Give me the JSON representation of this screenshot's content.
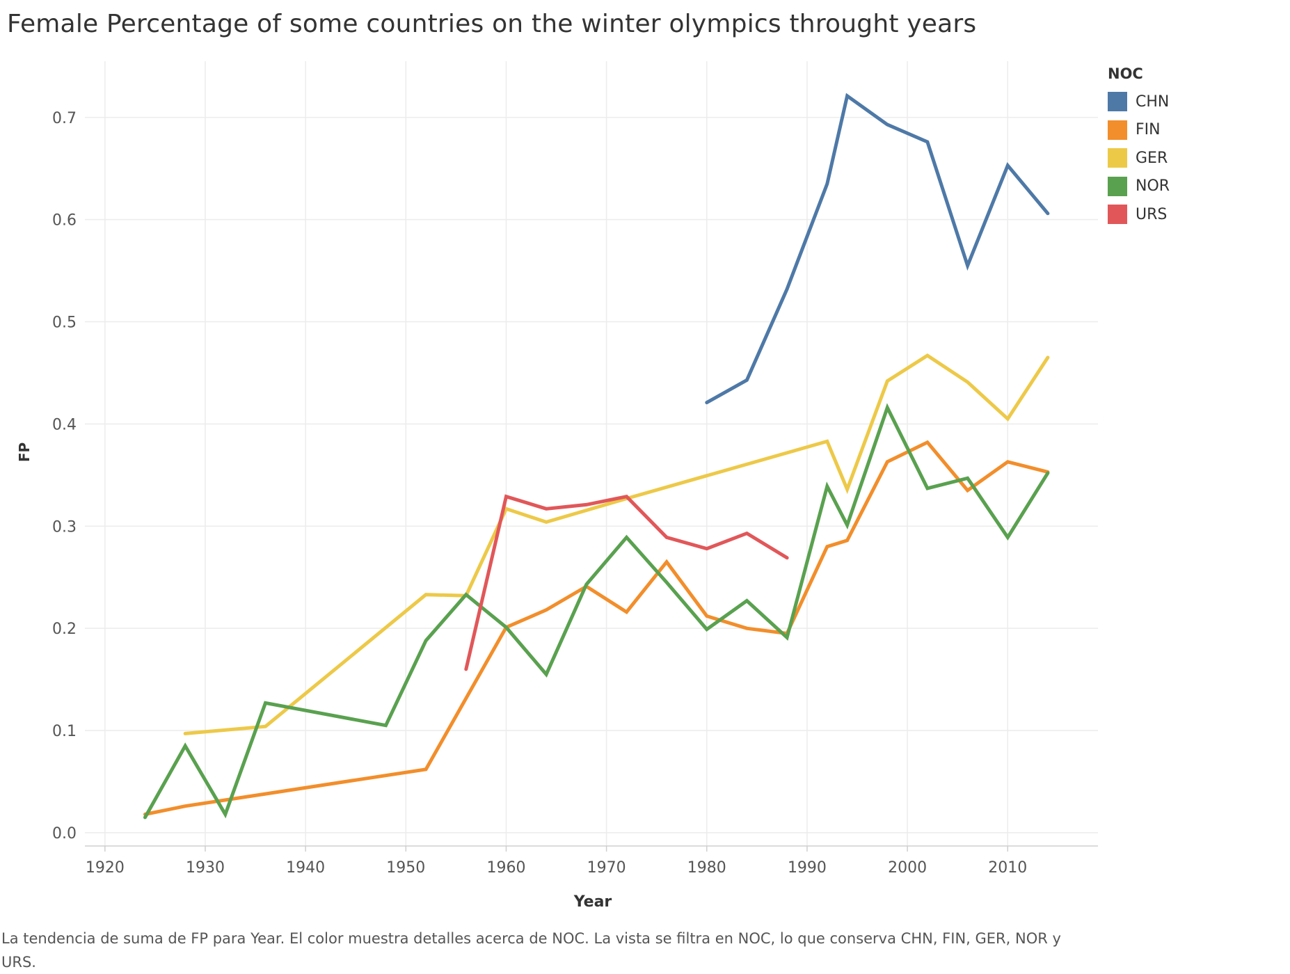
{
  "chart_data": {
    "type": "line",
    "title": "Female Percentage of some countries on the winter olympics throught years",
    "xlabel": "Year",
    "ylabel": "FP",
    "xlim": [
      1918,
      2019
    ],
    "ylim": [
      -0.013,
      0.755
    ],
    "x_ticks": [
      1920,
      1930,
      1940,
      1950,
      1960,
      1970,
      1980,
      1990,
      2000,
      2010
    ],
    "y_ticks": [
      0.0,
      0.1,
      0.2,
      0.3,
      0.4,
      0.5,
      0.6,
      0.7
    ],
    "y_tick_labels": [
      "0.0",
      "0.1",
      "0.2",
      "0.3",
      "0.4",
      "0.5",
      "0.6",
      "0.7"
    ],
    "grid": true,
    "legend": {
      "title": "NOC",
      "placement": "top-right"
    },
    "series": [
      {
        "name": "CHN",
        "color": "#4e79a7",
        "x": [
          1980,
          1984,
          1988,
          1992,
          1994,
          1998,
          2002,
          2006,
          2010,
          2014
        ],
        "y": [
          0.421,
          0.443,
          0.532,
          0.635,
          0.721,
          0.693,
          0.676,
          0.555,
          0.653,
          0.606
        ]
      },
      {
        "name": "FIN",
        "color": "#f28e2b",
        "x": [
          1924,
          1928,
          1936,
          1952,
          1960,
          1964,
          1968,
          1972,
          1976,
          1980,
          1984,
          1988,
          1992,
          1994,
          1998,
          2002,
          2006,
          2010,
          2014
        ],
        "y": [
          0.018,
          0.026,
          0.038,
          0.062,
          0.201,
          0.218,
          0.241,
          0.216,
          0.265,
          0.212,
          0.2,
          0.195,
          0.28,
          0.286,
          0.363,
          0.382,
          0.335,
          0.363,
          0.353
        ]
      },
      {
        "name": "GER",
        "color": "#edc948",
        "x": [
          1928,
          1936,
          1952,
          1956,
          1960,
          1964,
          1972,
          1992,
          1994,
          1998,
          2002,
          2006,
          2010,
          2014
        ],
        "y": [
          0.097,
          0.104,
          0.233,
          0.232,
          0.317,
          0.304,
          0.327,
          0.383,
          0.336,
          0.442,
          0.467,
          0.441,
          0.405,
          0.465
        ]
      },
      {
        "name": "NOR",
        "color": "#59a14f",
        "x": [
          1924,
          1928,
          1932,
          1936,
          1948,
          1952,
          1956,
          1960,
          1964,
          1968,
          1972,
          1976,
          1980,
          1984,
          1988,
          1992,
          1994,
          1998,
          2002,
          2006,
          2010,
          2014
        ],
        "y": [
          0.015,
          0.085,
          0.018,
          0.127,
          0.105,
          0.188,
          0.233,
          0.201,
          0.155,
          0.243,
          0.289,
          0.245,
          0.199,
          0.227,
          0.191,
          0.339,
          0.301,
          0.416,
          0.337,
          0.347,
          0.289,
          0.352
        ]
      },
      {
        "name": "URS",
        "color": "#e15759",
        "x": [
          1956,
          1960,
          1964,
          1968,
          1972,
          1976,
          1980,
          1984,
          1988
        ],
        "y": [
          0.16,
          0.329,
          0.317,
          0.321,
          0.329,
          0.289,
          0.278,
          0.293,
          0.269
        ]
      }
    ]
  },
  "caption": "La tendencia de suma de FP para Year.  El color muestra detalles acerca de NOC. La vista se filtra en NOC, lo que conserva CHN, FIN, GER, NOR y URS."
}
